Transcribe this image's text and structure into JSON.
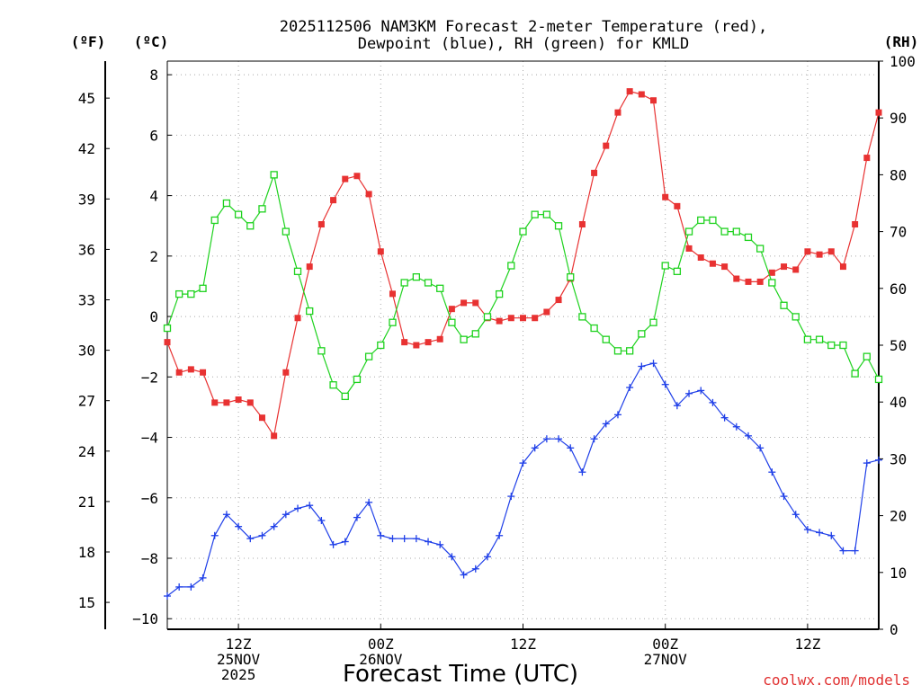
{
  "chart_data": {
    "type": "line",
    "title_lines": [
      "2025112506 NAM3KM Forecast 2-meter Temperature (red),",
      "Dewpoint (blue), RH (green) for KMLD"
    ],
    "xlabel": "Forecast Time (UTC)",
    "credit": "coolwx.com/models",
    "units": {
      "fahrenheit": "(ºF)",
      "celsius": "(ºC)",
      "rh": "(RH)"
    },
    "x_hours_range": [
      6,
      66
    ],
    "x_ticks": [
      {
        "hour": 12,
        "lines": [
          "12Z",
          "25NOV",
          "2025"
        ]
      },
      {
        "hour": 24,
        "lines": [
          "00Z",
          "26NOV"
        ]
      },
      {
        "hour": 36,
        "lines": [
          "12Z"
        ]
      },
      {
        "hour": 48,
        "lines": [
          "00Z",
          "27NOV"
        ]
      },
      {
        "hour": 60,
        "lines": [
          "12Z"
        ]
      }
    ],
    "celsius_axis": {
      "range": [
        -10.35,
        8.45
      ],
      "ticks": [
        "8",
        "6",
        "4",
        "2",
        "0",
        "−2",
        "−4",
        "−6",
        "−8",
        "−10"
      ],
      "tick_values": [
        8,
        6,
        4,
        2,
        0,
        -2,
        -4,
        -6,
        -8,
        -10
      ]
    },
    "fahrenheit_axis": {
      "range": [
        13.4,
        47.2
      ],
      "ticks": [
        "45",
        "42",
        "39",
        "36",
        "33",
        "30",
        "27",
        "24",
        "21",
        "18",
        "15"
      ],
      "tick_values": [
        45,
        42,
        39,
        36,
        33,
        30,
        27,
        24,
        21,
        18,
        15
      ]
    },
    "rh_axis": {
      "range": [
        0,
        100
      ],
      "ticks": [
        "100",
        "90",
        "80",
        "70",
        "60",
        "50",
        "40",
        "30",
        "20",
        "10",
        "0"
      ],
      "tick_values": [
        100,
        90,
        80,
        70,
        60,
        50,
        40,
        30,
        20,
        10,
        0
      ]
    },
    "series": [
      {
        "name": "Temperature",
        "unit": "C",
        "color": "#e83232",
        "marker": "filled-square",
        "values": [
          -0.85,
          -1.85,
          -1.75,
          -1.85,
          -2.85,
          -2.85,
          -2.75,
          -2.85,
          -3.35,
          -3.95,
          -1.85,
          -0.05,
          1.65,
          3.05,
          3.85,
          4.55,
          4.65,
          4.05,
          2.15,
          0.75,
          -0.85,
          -0.95,
          -0.85,
          -0.75,
          0.25,
          0.45,
          0.45,
          -0.05,
          -0.15,
          -0.05,
          -0.05,
          -0.05,
          0.15,
          0.55,
          1.25,
          3.05,
          4.75,
          5.65,
          6.75,
          7.45,
          7.35,
          7.15,
          3.95,
          3.65,
          2.25,
          1.95,
          1.75,
          1.65,
          1.25,
          1.15,
          1.15,
          1.45,
          1.65,
          1.55,
          2.15,
          2.05,
          2.15,
          1.65,
          3.05,
          5.25,
          6.75
        ]
      },
      {
        "name": "Dewpoint",
        "unit": "C",
        "color": "#1f3fe8",
        "marker": "plus",
        "values": [
          -9.25,
          -8.95,
          -8.95,
          -8.65,
          -7.25,
          -6.55,
          -6.95,
          -7.35,
          -7.25,
          -6.95,
          -6.55,
          -6.35,
          -6.25,
          -6.75,
          -7.55,
          -7.45,
          -6.65,
          -6.15,
          -7.25,
          -7.35,
          -7.35,
          -7.35,
          -7.45,
          -7.55,
          -7.95,
          -8.55,
          -8.35,
          -7.95,
          -7.25,
          -5.95,
          -4.85,
          -4.35,
          -4.05,
          -4.05,
          -4.35,
          -5.15,
          -4.05,
          -3.55,
          -3.25,
          -2.35,
          -1.65,
          -1.55,
          -2.25,
          -2.95,
          -2.55,
          -2.45,
          -2.85,
          -3.35,
          -3.65,
          -3.95,
          -4.35,
          -5.15,
          -5.95,
          -6.55,
          -7.05,
          -7.15,
          -7.25,
          -7.75,
          -7.75,
          -4.85,
          -4.75
        ]
      },
      {
        "name": "RH",
        "unit": "%",
        "color": "#1ed21e",
        "marker": "open-square",
        "values": [
          53,
          59,
          59,
          60,
          72,
          75,
          73,
          71,
          74,
          80,
          70,
          63,
          56,
          49,
          43,
          41,
          44,
          48,
          50,
          54,
          61,
          62,
          61,
          60,
          54,
          51,
          52,
          55,
          59,
          64,
          70,
          73,
          73,
          71,
          62,
          55,
          53,
          51,
          49,
          49,
          52,
          54,
          64,
          63,
          70,
          72,
          72,
          70,
          70,
          69,
          67,
          61,
          57,
          55,
          51,
          51,
          50,
          50,
          45,
          48,
          44
        ]
      }
    ]
  }
}
